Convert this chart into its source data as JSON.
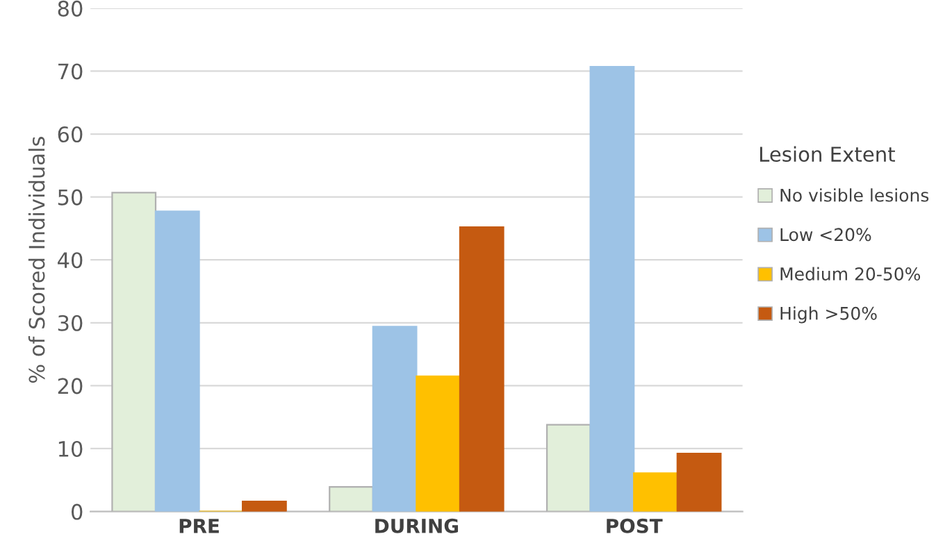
{
  "chart_data": {
    "type": "bar",
    "ylabel": "% of Scored Individuals",
    "legend_title": "Lesion Extent",
    "categories": [
      "PRE",
      "DURING",
      "POST"
    ],
    "series": [
      {
        "name": "No visible lesions",
        "color": "#e2efda",
        "values": [
          50.7,
          3.9,
          13.8
        ]
      },
      {
        "name": "Low <20%",
        "color": "#9dc3e6",
        "values": [
          47.7,
          29.4,
          70.7
        ]
      },
      {
        "name": "Medium 20-50%",
        "color": "#ffc000",
        "values": [
          0,
          21.5,
          6.1
        ]
      },
      {
        "name": "High >50%",
        "color": "#c55a11",
        "values": [
          1.6,
          45.2,
          9.2
        ]
      }
    ],
    "ylim": [
      0,
      80
    ],
    "yticks": [
      0,
      10,
      20,
      30,
      40,
      50,
      60,
      70,
      80
    ],
    "grid": "y",
    "legend": "right"
  }
}
